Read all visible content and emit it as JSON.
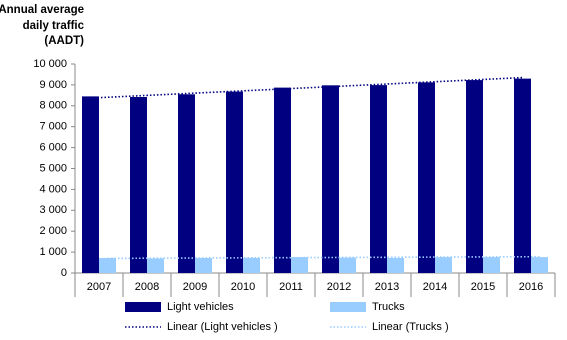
{
  "chart_data": {
    "type": "bar",
    "ylabel": [
      "Annual average",
      "daily traffic",
      "(AADT)"
    ],
    "categories": [
      "2007",
      "2008",
      "2009",
      "2010",
      "2011",
      "2012",
      "2013",
      "2014",
      "2015",
      "2016"
    ],
    "series": [
      {
        "name": "Light vehicles",
        "color": "#000080",
        "values": [
          8450,
          8420,
          8550,
          8680,
          8870,
          8980,
          8990,
          9120,
          9230,
          9300
        ]
      },
      {
        "name": "Trucks",
        "color": "#99ccff",
        "values": [
          720,
          700,
          720,
          720,
          760,
          740,
          720,
          760,
          760,
          760
        ]
      }
    ],
    "trendlines": [
      {
        "name": "Linear (Light vehicles )",
        "color": "#000080",
        "values": [
          8370,
          9350
        ]
      },
      {
        "name": "Linear (Trucks )",
        "color": "#99ccff",
        "values": [
          700,
          780
        ]
      }
    ],
    "ylim": [
      0,
      10000
    ],
    "yticks": [
      0,
      {
        "value": 1000,
        "label": "1 000"
      },
      {
        "value": 2000,
        "label": "2 000"
      },
      {
        "value": 3000,
        "label": "3 000"
      },
      {
        "value": 4000,
        "label": "4 000"
      },
      {
        "value": 5000,
        "label": "5 000"
      },
      {
        "value": 6000,
        "label": "6 000"
      },
      {
        "value": 7000,
        "label": "7 000"
      },
      {
        "value": 8000,
        "label": "8 000"
      },
      {
        "value": 9000,
        "label": "9 000"
      },
      {
        "value": 10000,
        "label": "10 000"
      }
    ]
  }
}
